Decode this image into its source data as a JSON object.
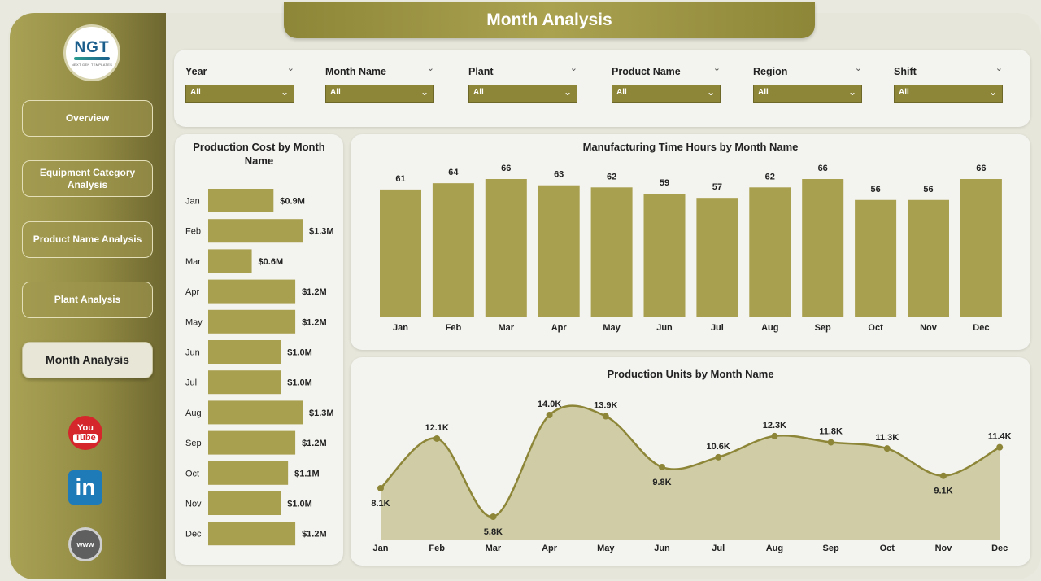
{
  "header": {
    "title": "Month Analysis"
  },
  "logo": {
    "text": "NGT",
    "subtext": "NEXT GEN TEMPLATES"
  },
  "nav": [
    {
      "label": "Overview",
      "active": false
    },
    {
      "label": "Equipment Category Analysis",
      "active": false
    },
    {
      "label": "Product Name Analysis",
      "active": false
    },
    {
      "label": "Plant Analysis",
      "active": false
    },
    {
      "label": "Month Analysis",
      "active": true
    }
  ],
  "social": {
    "youtube_top": "You",
    "youtube_bottom": "Tube",
    "linkedin": "in",
    "web": "www"
  },
  "filters": [
    {
      "label": "Year",
      "value": "All"
    },
    {
      "label": "Month Name",
      "value": "All"
    },
    {
      "label": "Plant",
      "value": "All"
    },
    {
      "label": "Product Name",
      "value": "All"
    },
    {
      "label": "Region",
      "value": "All"
    },
    {
      "label": "Shift",
      "value": "All"
    }
  ],
  "colors": {
    "accent": "#8d8638",
    "bar": "#a9a04f",
    "line": "#8d8638",
    "area": "#cfcca6"
  },
  "chart_data": [
    {
      "type": "bar",
      "orientation": "horizontal",
      "title": "Production Cost by Month Name",
      "categories": [
        "Jan",
        "Feb",
        "Mar",
        "Apr",
        "May",
        "Jun",
        "Jul",
        "Aug",
        "Sep",
        "Oct",
        "Nov",
        "Dec"
      ],
      "values": [
        0.9,
        1.3,
        0.6,
        1.2,
        1.2,
        1.0,
        1.0,
        1.3,
        1.2,
        1.1,
        1.0,
        1.2
      ],
      "labels": [
        "$0.9M",
        "$1.3M",
        "$0.6M",
        "$1.2M",
        "$1.2M",
        "$1.0M",
        "$1.0M",
        "$1.3M",
        "$1.2M",
        "$1.1M",
        "$1.0M",
        "$1.2M"
      ]
    },
    {
      "type": "bar",
      "title": "Manufacturing Time Hours by Month Name",
      "categories": [
        "Jan",
        "Feb",
        "Mar",
        "Apr",
        "May",
        "Jun",
        "Jul",
        "Aug",
        "Sep",
        "Oct",
        "Nov",
        "Dec"
      ],
      "values": [
        61,
        64,
        66,
        63,
        62,
        59,
        57,
        62,
        66,
        56,
        56,
        66
      ]
    },
    {
      "type": "area",
      "title": "Production Units by Month Name",
      "categories": [
        "Jan",
        "Feb",
        "Mar",
        "Apr",
        "May",
        "Jun",
        "Jul",
        "Aug",
        "Sep",
        "Oct",
        "Nov",
        "Dec"
      ],
      "values": [
        8.1,
        12.1,
        5.8,
        14.0,
        13.9,
        9.8,
        10.6,
        12.3,
        11.8,
        11.3,
        9.1,
        11.4
      ],
      "labels": [
        "8.1K",
        "12.1K",
        "5.8K",
        "14.0K",
        "13.9K",
        "9.8K",
        "10.6K",
        "12.3K",
        "11.8K",
        "11.3K",
        "9.1K",
        "11.4K"
      ]
    }
  ]
}
